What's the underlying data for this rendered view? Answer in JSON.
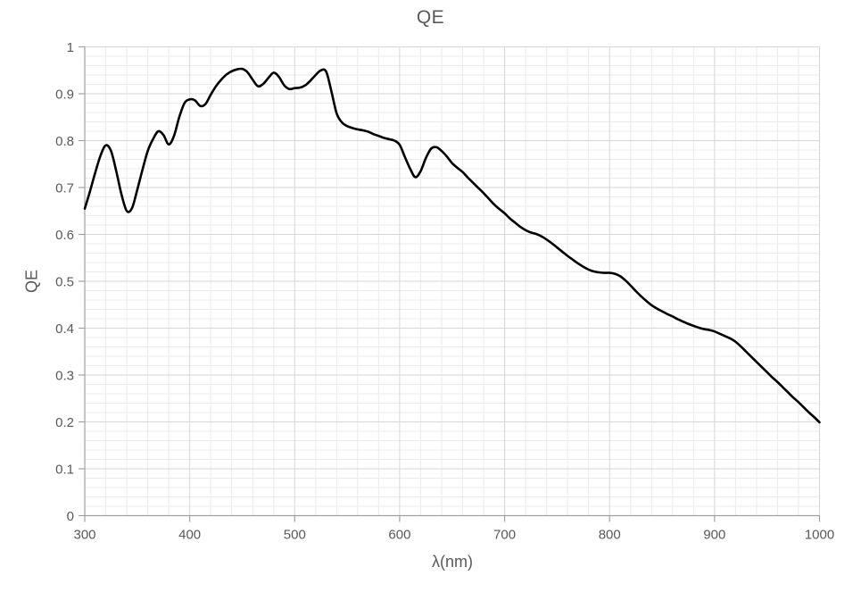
{
  "chart_data": {
    "type": "line",
    "title": "QE",
    "xlabel": "λ(nm)",
    "ylabel": "QE",
    "xlim": [
      300,
      1000
    ],
    "ylim": [
      0,
      1
    ],
    "grid": {
      "major": true,
      "minor": true
    },
    "legend": "none",
    "x_major_ticks": [
      300,
      400,
      500,
      600,
      700,
      800,
      900,
      1000
    ],
    "x_tick_labels": [
      "300",
      "400",
      "500",
      "600",
      "700",
      "800",
      "900",
      "1000"
    ],
    "x_minor_step": 20,
    "y_major_ticks": [
      0,
      0.1,
      0.2,
      0.3,
      0.4,
      0.5,
      0.6,
      0.7,
      0.8,
      0.9,
      1
    ],
    "y_tick_labels": [
      "0",
      "0.1",
      "0.2",
      "0.3",
      "0.4",
      "0.5",
      "0.6",
      "0.7",
      "0.8",
      "0.9",
      "1"
    ],
    "y_minor_step": 0.02,
    "colors": {
      "curve": "#000000",
      "text": "#595959",
      "axis_line": "#a0a0a0",
      "grid_major": "#d6d6d6",
      "grid_minor": "#ebebeb"
    },
    "series": [
      {
        "name": "QE",
        "color": "#000000",
        "x": [
          300,
          305,
          310,
          315,
          320,
          325,
          330,
          335,
          340,
          345,
          350,
          355,
          360,
          365,
          370,
          375,
          380,
          385,
          390,
          395,
          400,
          405,
          410,
          415,
          420,
          425,
          430,
          435,
          440,
          445,
          450,
          455,
          460,
          465,
          470,
          475,
          480,
          485,
          490,
          495,
          500,
          505,
          510,
          515,
          520,
          525,
          530,
          535,
          540,
          545,
          550,
          555,
          560,
          565,
          570,
          575,
          580,
          585,
          590,
          595,
          600,
          605,
          610,
          615,
          620,
          625,
          630,
          635,
          640,
          645,
          650,
          655,
          660,
          665,
          670,
          675,
          680,
          685,
          690,
          695,
          700,
          705,
          710,
          715,
          720,
          725,
          730,
          735,
          740,
          745,
          750,
          755,
          760,
          765,
          770,
          775,
          780,
          785,
          790,
          795,
          800,
          805,
          810,
          815,
          820,
          825,
          830,
          835,
          840,
          845,
          850,
          855,
          860,
          865,
          870,
          875,
          880,
          885,
          890,
          895,
          900,
          905,
          910,
          915,
          920,
          925,
          930,
          935,
          940,
          945,
          950,
          955,
          960,
          965,
          970,
          975,
          980,
          985,
          990,
          995,
          1000
        ],
        "y": [
          0.655,
          0.692,
          0.732,
          0.768,
          0.79,
          0.778,
          0.735,
          0.685,
          0.65,
          0.656,
          0.695,
          0.738,
          0.778,
          0.803,
          0.82,
          0.812,
          0.792,
          0.81,
          0.85,
          0.88,
          0.888,
          0.886,
          0.874,
          0.878,
          0.898,
          0.916,
          0.93,
          0.941,
          0.948,
          0.952,
          0.953,
          0.946,
          0.93,
          0.916,
          0.921,
          0.934,
          0.945,
          0.936,
          0.918,
          0.91,
          0.912,
          0.913,
          0.918,
          0.928,
          0.94,
          0.95,
          0.947,
          0.905,
          0.858,
          0.839,
          0.831,
          0.827,
          0.824,
          0.822,
          0.819,
          0.814,
          0.81,
          0.806,
          0.803,
          0.8,
          0.791,
          0.765,
          0.74,
          0.722,
          0.735,
          0.763,
          0.783,
          0.786,
          0.778,
          0.766,
          0.752,
          0.742,
          0.733,
          0.721,
          0.71,
          0.699,
          0.688,
          0.676,
          0.664,
          0.654,
          0.645,
          0.634,
          0.625,
          0.616,
          0.609,
          0.604,
          0.601,
          0.596,
          0.589,
          0.581,
          0.572,
          0.563,
          0.554,
          0.546,
          0.538,
          0.531,
          0.525,
          0.521,
          0.519,
          0.518,
          0.518,
          0.516,
          0.511,
          0.502,
          0.491,
          0.479,
          0.468,
          0.458,
          0.449,
          0.442,
          0.436,
          0.43,
          0.425,
          0.419,
          0.414,
          0.409,
          0.405,
          0.401,
          0.398,
          0.396,
          0.393,
          0.388,
          0.383,
          0.378,
          0.371,
          0.361,
          0.35,
          0.339,
          0.328,
          0.317,
          0.306,
          0.295,
          0.285,
          0.274,
          0.263,
          0.252,
          0.242,
          0.231,
          0.22,
          0.21,
          0.199
        ]
      }
    ]
  }
}
